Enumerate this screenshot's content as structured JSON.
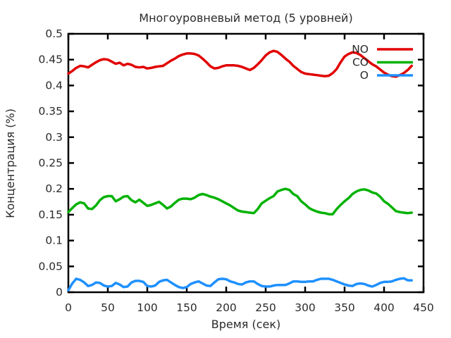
{
  "window": {
    "background": "#ffffff",
    "text_color": "#2b2b2b",
    "frame_color": "#000000"
  },
  "chart_data": {
    "type": "line",
    "title": "Многоуровневый метод (5 уровней)",
    "xlabel": "Время (сек)",
    "ylabel": "Концентрация (%)",
    "xlim": [
      0,
      450
    ],
    "ylim": [
      0,
      0.5
    ],
    "xticks": [
      "0",
      "50",
      "100",
      "150",
      "200",
      "250",
      "300",
      "350",
      "400",
      "450"
    ],
    "yticks": [
      "0",
      "0.05",
      "0.1",
      "0.15",
      "0.2",
      "0.25",
      "0.3",
      "0.35",
      "0.4",
      "0.45",
      "0.5"
    ],
    "grid": false,
    "legend_position": "top-right-inside",
    "legend_box": false,
    "x": [
      0,
      5,
      10,
      15,
      20,
      25,
      30,
      35,
      40,
      45,
      50,
      55,
      60,
      65,
      70,
      75,
      80,
      85,
      90,
      95,
      100,
      105,
      110,
      115,
      120,
      125,
      130,
      135,
      140,
      145,
      150,
      155,
      160,
      165,
      170,
      175,
      180,
      185,
      190,
      195,
      200,
      205,
      210,
      215,
      220,
      225,
      230,
      235,
      240,
      245,
      250,
      255,
      260,
      265,
      270,
      275,
      280,
      285,
      290,
      295,
      300,
      305,
      310,
      315,
      320,
      325,
      330,
      335,
      340,
      345,
      350,
      355,
      360,
      365,
      370,
      375,
      380,
      385,
      390,
      395,
      400,
      405,
      410,
      415,
      420,
      425,
      430,
      435
    ],
    "series": [
      {
        "name": "NO",
        "color": "#e10000",
        "values": [
          0.423,
          0.428,
          0.434,
          0.438,
          0.437,
          0.435,
          0.44,
          0.445,
          0.449,
          0.451,
          0.45,
          0.446,
          0.442,
          0.444,
          0.439,
          0.442,
          0.44,
          0.436,
          0.435,
          0.436,
          0.433,
          0.434,
          0.436,
          0.437,
          0.438,
          0.443,
          0.448,
          0.452,
          0.457,
          0.46,
          0.462,
          0.462,
          0.461,
          0.458,
          0.452,
          0.445,
          0.437,
          0.433,
          0.434,
          0.437,
          0.439,
          0.439,
          0.439,
          0.438,
          0.436,
          0.433,
          0.43,
          0.434,
          0.441,
          0.449,
          0.458,
          0.464,
          0.467,
          0.465,
          0.459,
          0.452,
          0.446,
          0.438,
          0.432,
          0.426,
          0.423,
          0.422,
          0.421,
          0.42,
          0.419,
          0.418,
          0.419,
          0.424,
          0.432,
          0.445,
          0.456,
          0.461,
          0.464,
          0.463,
          0.459,
          0.453,
          0.447,
          0.441,
          0.437,
          0.431,
          0.425,
          0.421,
          0.418,
          0.417,
          0.42,
          0.424,
          0.43,
          0.438
        ]
      },
      {
        "name": "CO",
        "color": "#00b200",
        "values": [
          0.155,
          0.163,
          0.17,
          0.174,
          0.172,
          0.162,
          0.161,
          0.168,
          0.178,
          0.184,
          0.186,
          0.186,
          0.176,
          0.18,
          0.185,
          0.186,
          0.178,
          0.174,
          0.179,
          0.173,
          0.167,
          0.169,
          0.172,
          0.175,
          0.169,
          0.162,
          0.166,
          0.173,
          0.179,
          0.181,
          0.181,
          0.18,
          0.183,
          0.188,
          0.19,
          0.188,
          0.185,
          0.183,
          0.18,
          0.176,
          0.172,
          0.168,
          0.163,
          0.158,
          0.156,
          0.155,
          0.154,
          0.153,
          0.161,
          0.172,
          0.177,
          0.182,
          0.186,
          0.195,
          0.198,
          0.2,
          0.198,
          0.19,
          0.186,
          0.176,
          0.17,
          0.163,
          0.159,
          0.156,
          0.154,
          0.153,
          0.151,
          0.151,
          0.161,
          0.169,
          0.176,
          0.182,
          0.19,
          0.195,
          0.198,
          0.199,
          0.197,
          0.193,
          0.191,
          0.185,
          0.176,
          0.171,
          0.164,
          0.157,
          0.155,
          0.154,
          0.153,
          0.154
        ]
      },
      {
        "name": "O",
        "color": "#1e90ff",
        "values": [
          0.004,
          0.017,
          0.026,
          0.024,
          0.019,
          0.012,
          0.014,
          0.019,
          0.018,
          0.013,
          0.011,
          0.012,
          0.018,
          0.015,
          0.01,
          0.011,
          0.019,
          0.022,
          0.022,
          0.02,
          0.012,
          0.011,
          0.013,
          0.02,
          0.023,
          0.024,
          0.019,
          0.014,
          0.01,
          0.008,
          0.01,
          0.016,
          0.019,
          0.021,
          0.017,
          0.013,
          0.012,
          0.019,
          0.025,
          0.026,
          0.025,
          0.021,
          0.019,
          0.016,
          0.015,
          0.019,
          0.021,
          0.021,
          0.016,
          0.012,
          0.011,
          0.011,
          0.013,
          0.014,
          0.014,
          0.014,
          0.017,
          0.021,
          0.021,
          0.02,
          0.02,
          0.021,
          0.021,
          0.024,
          0.026,
          0.026,
          0.026,
          0.024,
          0.021,
          0.018,
          0.015,
          0.013,
          0.012,
          0.016,
          0.017,
          0.016,
          0.013,
          0.011,
          0.014,
          0.018,
          0.02,
          0.02,
          0.021,
          0.024,
          0.026,
          0.027,
          0.023,
          0.023
        ]
      }
    ]
  }
}
